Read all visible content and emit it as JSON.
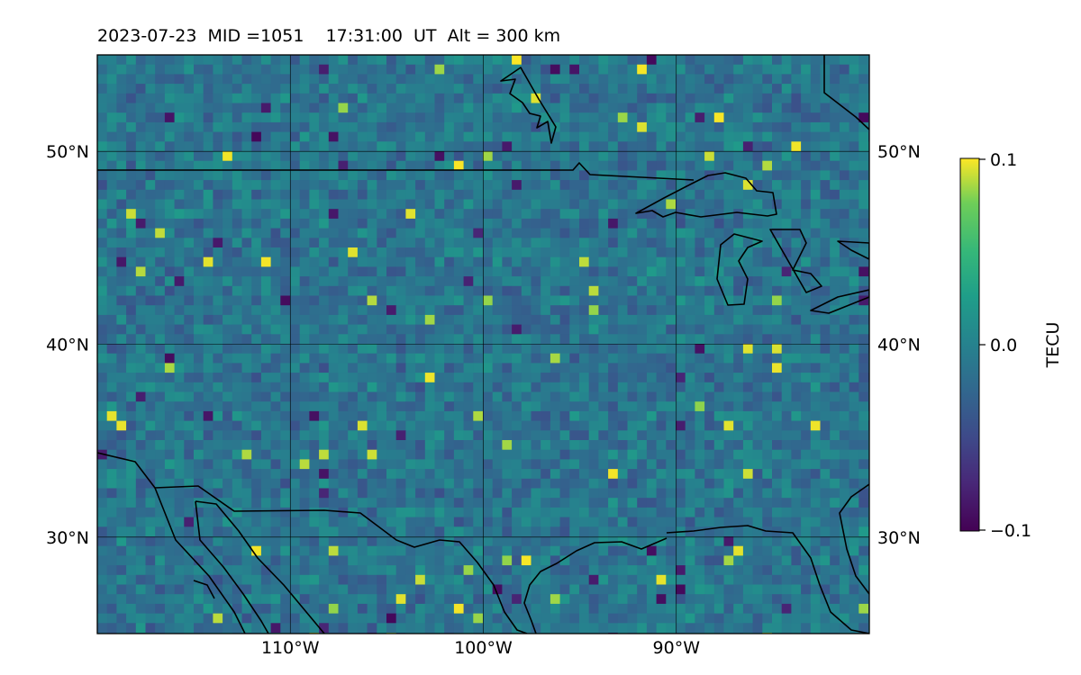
{
  "title": "2023-07-23  MID =1051    17:31:00  UT  Alt = 300 km",
  "map": {
    "lon_range": [
      -120,
      -80
    ],
    "lat_range": [
      25,
      55
    ],
    "grid_lons": [
      -110,
      -100,
      -90
    ],
    "grid_lats": [
      30,
      40,
      50
    ],
    "lon_labels": [
      "110°W",
      "100°W",
      "90°W"
    ],
    "lat_labels": [
      "30°N",
      "40°N",
      "50°N"
    ],
    "colormap": "viridis",
    "coastline_color": "#000000"
  },
  "colorbar": {
    "label": "TECU",
    "vmin": -0.1,
    "vmax": 0.1,
    "ticks": [
      "−0.1",
      "0.0",
      "0.1"
    ]
  }
}
